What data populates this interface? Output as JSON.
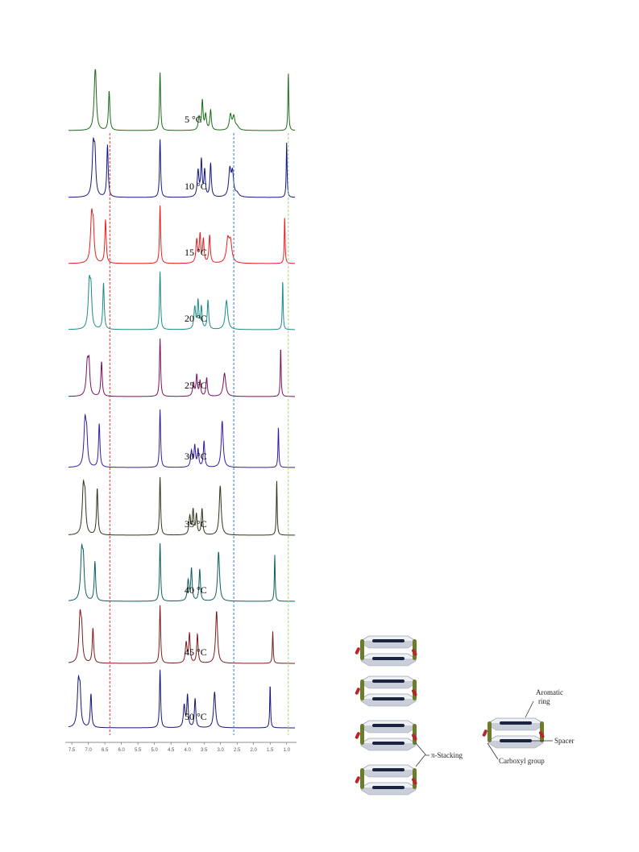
{
  "chart_data": {
    "type": "line",
    "subtype": "stacked NMR spectra",
    "xlabel": "",
    "ylabel": "",
    "x_reversed": true,
    "xlim": [
      7.6,
      0.75
    ],
    "ticks": [
      7.5,
      7.0,
      6.5,
      6.0,
      5.5,
      5.0,
      4.5,
      4.0,
      3.5,
      3.0,
      2.5,
      2.0,
      1.5,
      1.0
    ],
    "tick_labels": [
      "7.5",
      "7.0",
      "6.5",
      "6.0",
      "5.5",
      "5.0",
      "4.5",
      "4.0",
      "3.5",
      "3.0",
      "2.5",
      "2.0",
      "1.5",
      "1.0"
    ],
    "reference_lines": [
      {
        "x": 6.35,
        "color": "#e8302a"
      },
      {
        "x": 2.6,
        "color": "#2f7fd0"
      },
      {
        "x": 0.95,
        "color": "#9fd97f"
      }
    ],
    "series": [
      {
        "name": "5 °C",
        "temp": "5",
        "color": "#1b6b1b",
        "shift": 0.0,
        "peaks": [
          [
            6.8,
            0.62,
            0.04
          ],
          [
            6.78,
            0.55,
            0.03
          ],
          [
            6.37,
            0.68,
            0.025
          ],
          [
            4.83,
            1.0,
            0.02
          ],
          [
            3.65,
            0.22,
            0.03
          ],
          [
            3.55,
            0.5,
            0.025
          ],
          [
            3.45,
            0.26,
            0.03
          ],
          [
            3.3,
            0.35,
            0.025
          ],
          [
            2.7,
            0.26,
            0.04
          ],
          [
            2.6,
            0.22,
            0.04
          ],
          [
            2.5,
            0.06,
            0.06
          ],
          [
            0.95,
            1.0,
            0.015
          ]
        ]
      },
      {
        "name": "10 °C",
        "temp": "10",
        "color": "#141880",
        "shift": 0.04,
        "peaks": [
          [
            6.85,
            0.85,
            0.04
          ],
          [
            6.8,
            0.6,
            0.03
          ],
          [
            6.42,
            0.9,
            0.025
          ],
          [
            4.83,
            1.0,
            0.02
          ],
          [
            3.68,
            0.45,
            0.03
          ],
          [
            3.58,
            0.62,
            0.025
          ],
          [
            3.48,
            0.45,
            0.025
          ],
          [
            3.3,
            0.58,
            0.025
          ],
          [
            2.72,
            0.45,
            0.04
          ],
          [
            2.64,
            0.4,
            0.04
          ],
          [
            2.5,
            0.06,
            0.06
          ],
          [
            1.0,
            0.95,
            0.015
          ]
        ]
      },
      {
        "name": "15 °C",
        "temp": "15",
        "color": "#ee1c1c",
        "shift": 0.08,
        "peaks": [
          [
            6.9,
            0.8,
            0.04
          ],
          [
            6.85,
            0.5,
            0.03
          ],
          [
            6.48,
            0.75,
            0.025
          ],
          [
            4.83,
            1.0,
            0.02
          ],
          [
            3.72,
            0.4,
            0.03
          ],
          [
            3.62,
            0.48,
            0.025
          ],
          [
            3.52,
            0.4,
            0.025
          ],
          [
            3.33,
            0.48,
            0.025
          ],
          [
            2.78,
            0.38,
            0.05
          ],
          [
            2.7,
            0.34,
            0.05
          ],
          [
            1.06,
            0.8,
            0.015
          ]
        ]
      },
      {
        "name": "20 °C",
        "temp": "20",
        "color": "#1b8c86",
        "shift": 0.12,
        "peaks": [
          [
            6.97,
            0.78,
            0.04
          ],
          [
            6.92,
            0.55,
            0.03
          ],
          [
            6.54,
            0.8,
            0.025
          ],
          [
            4.83,
            1.0,
            0.02
          ],
          [
            3.78,
            0.38,
            0.03
          ],
          [
            3.68,
            0.48,
            0.025
          ],
          [
            3.58,
            0.38,
            0.025
          ],
          [
            3.38,
            0.5,
            0.025
          ],
          [
            2.82,
            0.5,
            0.045
          ],
          [
            1.12,
            0.85,
            0.015
          ]
        ]
      },
      {
        "name": "25 °C",
        "temp": "25",
        "color": "#7b1060",
        "shift": 0.16,
        "peaks": [
          [
            7.03,
            0.55,
            0.04
          ],
          [
            6.98,
            0.48,
            0.03
          ],
          [
            6.6,
            0.6,
            0.025
          ],
          [
            4.83,
            1.0,
            0.02
          ],
          [
            3.82,
            0.22,
            0.03
          ],
          [
            3.72,
            0.36,
            0.025
          ],
          [
            3.62,
            0.26,
            0.025
          ],
          [
            3.42,
            0.32,
            0.025
          ],
          [
            2.88,
            0.4,
            0.045
          ],
          [
            1.18,
            0.85,
            0.015
          ]
        ]
      },
      {
        "name": "30 °C",
        "temp": "30",
        "color": "#3a1aa0",
        "shift": 0.2,
        "peaks": [
          [
            7.1,
            0.78,
            0.04
          ],
          [
            7.05,
            0.45,
            0.03
          ],
          [
            6.67,
            0.75,
            0.025
          ],
          [
            4.83,
            1.0,
            0.02
          ],
          [
            3.88,
            0.28,
            0.03
          ],
          [
            3.78,
            0.36,
            0.025
          ],
          [
            3.68,
            0.3,
            0.025
          ],
          [
            3.5,
            0.45,
            0.025
          ],
          [
            2.95,
            0.8,
            0.035
          ],
          [
            1.25,
            0.7,
            0.015
          ]
        ]
      },
      {
        "name": "35 °C",
        "temp": "35",
        "color": "#333318",
        "shift": 0.24,
        "peaks": [
          [
            7.15,
            0.8,
            0.04
          ],
          [
            7.1,
            0.5,
            0.03
          ],
          [
            6.73,
            0.8,
            0.025
          ],
          [
            4.83,
            1.0,
            0.02
          ],
          [
            3.93,
            0.32,
            0.03
          ],
          [
            3.83,
            0.42,
            0.025
          ],
          [
            3.73,
            0.34,
            0.025
          ],
          [
            3.56,
            0.45,
            0.025
          ],
          [
            3.01,
            0.85,
            0.035
          ],
          [
            1.3,
            0.95,
            0.015
          ]
        ]
      },
      {
        "name": "40 °C",
        "temp": "40",
        "color": "#0f5e5e",
        "shift": 0.28,
        "peaks": [
          [
            7.2,
            0.82,
            0.04
          ],
          [
            7.15,
            0.55,
            0.03
          ],
          [
            6.8,
            0.68,
            0.025
          ],
          [
            4.83,
            1.0,
            0.02
          ],
          [
            3.98,
            0.35,
            0.03
          ],
          [
            3.88,
            0.55,
            0.025
          ],
          [
            3.63,
            0.55,
            0.025
          ],
          [
            3.06,
            0.85,
            0.035
          ],
          [
            1.36,
            0.8,
            0.015
          ]
        ]
      },
      {
        "name": "45 °C",
        "temp": "45",
        "color": "#7a1c1c",
        "shift": 0.32,
        "peaks": [
          [
            7.25,
            0.8,
            0.04
          ],
          [
            7.2,
            0.45,
            0.03
          ],
          [
            6.86,
            0.6,
            0.025
          ],
          [
            4.83,
            1.0,
            0.02
          ],
          [
            4.04,
            0.35,
            0.03
          ],
          [
            3.94,
            0.5,
            0.025
          ],
          [
            3.7,
            0.5,
            0.025
          ],
          [
            3.12,
            0.9,
            0.035
          ],
          [
            1.42,
            0.55,
            0.015
          ]
        ]
      },
      {
        "name": "50 °C",
        "temp": "50",
        "color": "#15157a",
        "shift": 0.36,
        "peaks": [
          [
            7.3,
            0.75,
            0.04
          ],
          [
            7.25,
            0.5,
            0.03
          ],
          [
            6.92,
            0.58,
            0.025
          ],
          [
            4.83,
            1.0,
            0.02
          ],
          [
            4.1,
            0.38,
            0.03
          ],
          [
            4.0,
            0.55,
            0.025
          ],
          [
            3.77,
            0.5,
            0.025
          ],
          [
            3.18,
            0.62,
            0.035
          ],
          [
            1.5,
            0.75,
            0.015
          ]
        ]
      }
    ]
  },
  "diagram": {
    "labels": {
      "aromatic_ring_line1": "Aromatic",
      "aromatic_ring_line2": "ring",
      "spacer": "Spacer",
      "carboxyl_group": "Carboxyl group",
      "pi_stacking": "π-Stacking"
    },
    "colors": {
      "ring_face": "#eef0f4",
      "ring_edge": "#9aa3b0",
      "ring_core": "#1a2440",
      "spacer": "#6b7d2a",
      "carboxyl": "#b8252a"
    }
  }
}
